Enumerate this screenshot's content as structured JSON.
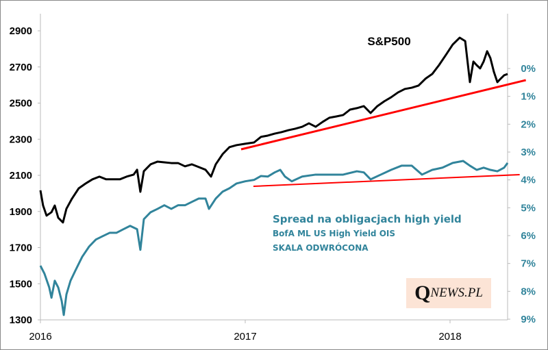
{
  "chart_data": {
    "type": "line",
    "title": "S&P500",
    "x_axis": {
      "ticks": [
        "2016",
        "2017",
        "2018"
      ],
      "range": [
        2016.0,
        2018.28
      ]
    },
    "left_axis": {
      "ticks": [
        "1300",
        "1500",
        "1700",
        "1900",
        "2100",
        "2300",
        "2500",
        "2700",
        "2900"
      ],
      "range": [
        1300,
        2900
      ]
    },
    "right_axis": {
      "ticks": [
        "0%",
        "1%",
        "2%",
        "3%",
        "4%",
        "5%",
        "6%",
        "7%",
        "8%",
        "9%"
      ],
      "range": [
        0,
        9
      ],
      "inverted": true
    },
    "series": [
      {
        "name": "S&P500",
        "axis": "left",
        "color": "#000000",
        "points": [
          [
            2016.0,
            2017
          ],
          [
            2016.013,
            1933
          ],
          [
            2016.03,
            1877
          ],
          [
            2016.054,
            1896
          ],
          [
            2016.07,
            1933
          ],
          [
            2016.087,
            1865
          ],
          [
            2016.11,
            1839
          ],
          [
            2016.127,
            1915
          ],
          [
            2016.154,
            1971
          ],
          [
            2016.187,
            2028
          ],
          [
            2016.221,
            2055
          ],
          [
            2016.254,
            2078
          ],
          [
            2016.288,
            2093
          ],
          [
            2016.321,
            2078
          ],
          [
            2016.355,
            2078
          ],
          [
            2016.388,
            2078
          ],
          [
            2016.421,
            2093
          ],
          [
            2016.455,
            2104
          ],
          [
            2016.472,
            2131
          ],
          [
            2016.488,
            2009
          ],
          [
            2016.505,
            2123
          ],
          [
            2016.538,
            2161
          ],
          [
            2016.572,
            2176
          ],
          [
            2016.605,
            2172
          ],
          [
            2016.639,
            2168
          ],
          [
            2016.672,
            2168
          ],
          [
            2016.706,
            2150
          ],
          [
            2016.739,
            2161
          ],
          [
            2016.773,
            2146
          ],
          [
            2016.806,
            2131
          ],
          [
            2016.833,
            2093
          ],
          [
            2016.856,
            2161
          ],
          [
            2016.89,
            2218
          ],
          [
            2016.923,
            2256
          ],
          [
            2016.957,
            2267
          ],
          [
            2017.0,
            2275
          ],
          [
            2017.043,
            2282
          ],
          [
            2017.077,
            2313
          ],
          [
            2017.11,
            2320
          ],
          [
            2017.144,
            2331
          ],
          [
            2017.177,
            2339
          ],
          [
            2017.211,
            2350
          ],
          [
            2017.244,
            2358
          ],
          [
            2017.278,
            2369
          ],
          [
            2017.311,
            2388
          ],
          [
            2017.344,
            2369
          ],
          [
            2017.378,
            2396
          ],
          [
            2017.411,
            2419
          ],
          [
            2017.445,
            2426
          ],
          [
            2017.478,
            2434
          ],
          [
            2017.512,
            2464
          ],
          [
            2017.545,
            2472
          ],
          [
            2017.579,
            2483
          ],
          [
            2017.612,
            2445
          ],
          [
            2017.645,
            2483
          ],
          [
            2017.679,
            2510
          ],
          [
            2017.712,
            2532
          ],
          [
            2017.746,
            2559
          ],
          [
            2017.779,
            2578
          ],
          [
            2017.813,
            2585
          ],
          [
            2017.846,
            2597
          ],
          [
            2017.88,
            2635
          ],
          [
            2017.913,
            2661
          ],
          [
            2017.946,
            2710
          ],
          [
            2017.98,
            2767
          ],
          [
            2018.013,
            2824
          ],
          [
            2018.047,
            2862
          ],
          [
            2018.074,
            2843
          ],
          [
            2018.097,
            2616
          ],
          [
            2018.114,
            2730
          ],
          [
            2018.13,
            2710
          ],
          [
            2018.147,
            2692
          ],
          [
            2018.164,
            2730
          ],
          [
            2018.181,
            2787
          ],
          [
            2018.197,
            2749
          ],
          [
            2018.214,
            2673
          ],
          [
            2018.231,
            2616
          ],
          [
            2018.247,
            2635
          ],
          [
            2018.264,
            2654
          ],
          [
            2018.281,
            2661
          ]
        ]
      },
      {
        "name": "Spread na obligacjach high yield",
        "axis": "right",
        "color": "#31849b",
        "points": [
          [
            2016.0,
            7.08
          ],
          [
            2016.02,
            7.37
          ],
          [
            2016.043,
            7.86
          ],
          [
            2016.054,
            8.23
          ],
          [
            2016.07,
            7.62
          ],
          [
            2016.087,
            7.86
          ],
          [
            2016.104,
            8.35
          ],
          [
            2016.114,
            8.85
          ],
          [
            2016.127,
            8.11
          ],
          [
            2016.147,
            7.62
          ],
          [
            2016.171,
            7.25
          ],
          [
            2016.204,
            6.76
          ],
          [
            2016.238,
            6.39
          ],
          [
            2016.271,
            6.14
          ],
          [
            2016.304,
            6.02
          ],
          [
            2016.338,
            5.9
          ],
          [
            2016.371,
            5.9
          ],
          [
            2016.405,
            5.77
          ],
          [
            2016.438,
            5.65
          ],
          [
            2016.472,
            5.77
          ],
          [
            2016.488,
            6.51
          ],
          [
            2016.505,
            5.41
          ],
          [
            2016.538,
            5.16
          ],
          [
            2016.572,
            5.04
          ],
          [
            2016.605,
            4.91
          ],
          [
            2016.639,
            5.04
          ],
          [
            2016.672,
            4.91
          ],
          [
            2016.706,
            4.91
          ],
          [
            2016.739,
            4.79
          ],
          [
            2016.773,
            4.67
          ],
          [
            2016.806,
            4.67
          ],
          [
            2016.823,
            5.04
          ],
          [
            2016.856,
            4.67
          ],
          [
            2016.89,
            4.42
          ],
          [
            2016.923,
            4.3
          ],
          [
            2016.957,
            4.13
          ],
          [
            2017.0,
            4.05
          ],
          [
            2017.043,
            4.0
          ],
          [
            2017.077,
            3.86
          ],
          [
            2017.11,
            3.88
          ],
          [
            2017.144,
            3.73
          ],
          [
            2017.171,
            3.64
          ],
          [
            2017.194,
            3.88
          ],
          [
            2017.227,
            4.05
          ],
          [
            2017.278,
            3.88
          ],
          [
            2017.344,
            3.81
          ],
          [
            2017.411,
            3.81
          ],
          [
            2017.478,
            3.81
          ],
          [
            2017.545,
            3.69
          ],
          [
            2017.579,
            3.73
          ],
          [
            2017.612,
            3.98
          ],
          [
            2017.662,
            3.81
          ],
          [
            2017.712,
            3.64
          ],
          [
            2017.763,
            3.49
          ],
          [
            2017.813,
            3.49
          ],
          [
            2017.863,
            3.81
          ],
          [
            2017.913,
            3.64
          ],
          [
            2017.963,
            3.56
          ],
          [
            2018.013,
            3.39
          ],
          [
            2018.064,
            3.32
          ],
          [
            2018.097,
            3.49
          ],
          [
            2018.13,
            3.64
          ],
          [
            2018.164,
            3.56
          ],
          [
            2018.197,
            3.64
          ],
          [
            2018.231,
            3.69
          ],
          [
            2018.264,
            3.56
          ],
          [
            2018.281,
            3.39
          ]
        ]
      }
    ],
    "trendlines": [
      {
        "axis": "left",
        "color": "#ff0000",
        "from": [
          2016.98,
          2244
        ],
        "to": [
          2018.37,
          2627
        ]
      },
      {
        "axis": "right",
        "color": "#ff0000",
        "from": [
          2017.04,
          4.23
        ],
        "to": [
          2018.34,
          3.81
        ]
      }
    ],
    "annotations": {
      "spread_title": "Spread na obligacjach high yield",
      "spread_source": "BofA ML US High Yield OIS",
      "spread_note": "SKALA ODWRÓCONA"
    },
    "grid": false
  },
  "logo": {
    "q": "Q",
    "rest": "NEWS.PL"
  }
}
